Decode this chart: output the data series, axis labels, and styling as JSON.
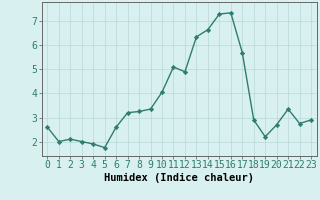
{
  "x": [
    0,
    1,
    2,
    3,
    4,
    5,
    6,
    7,
    8,
    9,
    10,
    11,
    12,
    13,
    14,
    15,
    16,
    17,
    18,
    19,
    20,
    21,
    22,
    23
  ],
  "y": [
    2.6,
    2.0,
    2.1,
    2.0,
    1.9,
    1.75,
    2.6,
    3.2,
    3.25,
    3.35,
    4.05,
    5.1,
    4.9,
    6.35,
    6.65,
    7.3,
    7.35,
    5.7,
    2.9,
    2.2,
    2.7,
    3.35,
    2.75,
    2.9
  ],
  "line_color": "#2e7d6e",
  "marker": "D",
  "marker_size": 2.2,
  "bg_color": "#d8f0f0",
  "grid_color": "#b8d8d8",
  "xlabel": "Humidex (Indice chaleur)",
  "xlabel_fontsize": 7.5,
  "ylabel_ticks": [
    2,
    3,
    4,
    5,
    6,
    7
  ],
  "xlim": [
    -0.5,
    23.5
  ],
  "ylim": [
    1.4,
    7.8
  ],
  "tick_fontsize": 7,
  "line_width": 1.0
}
